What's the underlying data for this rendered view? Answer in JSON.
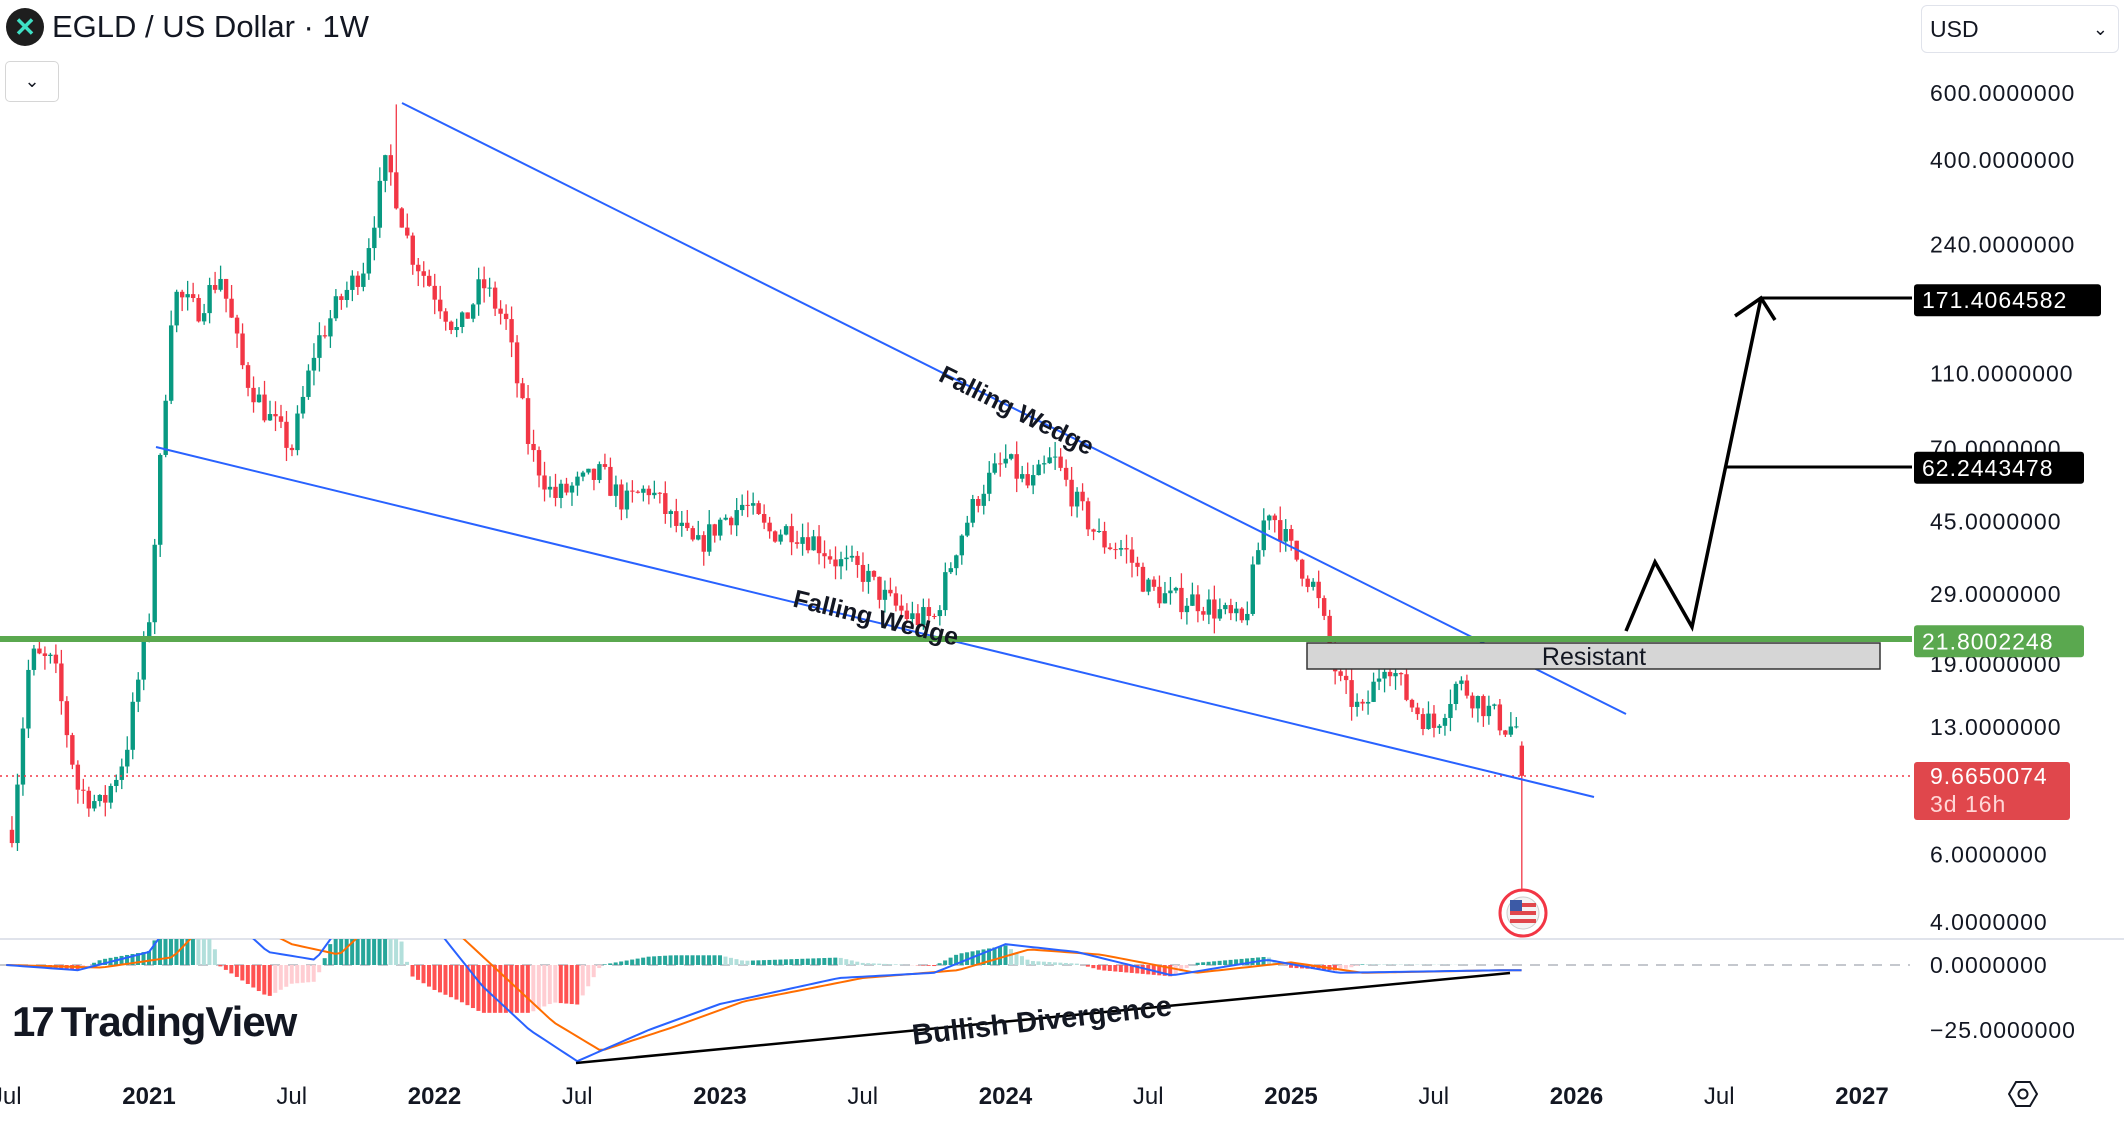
{
  "header": {
    "symbol_icon": "multiversx-x-logo",
    "title": "EGLD / US Dollar · 1W",
    "collapse_icon": "chevron-down-icon"
  },
  "currency_select": {
    "value": "USD",
    "icon": "chevron-down-icon"
  },
  "branding": {
    "logo_text": "TradingView"
  },
  "colors": {
    "up": "#089981",
    "down": "#f23645",
    "trendline": "#2962ff",
    "support_line": "#5aa84f",
    "price_label": "#e0474c",
    "macd": "#2962ff",
    "signal": "#ff6d00"
  },
  "chart_data": {
    "type": "candlestick",
    "interval": "1W",
    "y_scale": "log",
    "y_ticks": [
      "600.0000000",
      "400.0000000",
      "240.0000000",
      "110.0000000",
      "70.0000000",
      "45.0000000",
      "29.0000000",
      "19.0000000",
      "13.0000000",
      "6.0000000",
      "4.0000000"
    ],
    "y_tick_values": [
      600,
      400,
      240,
      110,
      70,
      45,
      29,
      19,
      13,
      6,
      4
    ],
    "x_ticks": [
      "Jul",
      "2021",
      "Jul",
      "2022",
      "Jul",
      "2023",
      "Jul",
      "2024",
      "Jul",
      "2025",
      "Jul",
      "2026",
      "Jul",
      "2027"
    ],
    "x_tick_dates": [
      "2020-07",
      "2021-01",
      "2021-07",
      "2022-01",
      "2022-07",
      "2023-01",
      "2023-07",
      "2024-01",
      "2024-07",
      "2025-01",
      "2025-07",
      "2026-01",
      "2026-07",
      "2027-01"
    ],
    "approx_close_path": [
      [
        "2020-07",
        5
      ],
      [
        "2020-08",
        20
      ],
      [
        "2020-09",
        19
      ],
      [
        "2020-10",
        9
      ],
      [
        "2020-11",
        8
      ],
      [
        "2020-12",
        11
      ],
      [
        "2021-01",
        25
      ],
      [
        "2021-02",
        180
      ],
      [
        "2021-03",
        160
      ],
      [
        "2021-04",
        200
      ],
      [
        "2021-05",
        110
      ],
      [
        "2021-06",
        85
      ],
      [
        "2021-07",
        70
      ],
      [
        "2021-08",
        130
      ],
      [
        "2021-09",
        170
      ],
      [
        "2021-10",
        210
      ],
      [
        "2021-11",
        400
      ],
      [
        "2021-12",
        230
      ],
      [
        "2022-01",
        180
      ],
      [
        "2022-02",
        140
      ],
      [
        "2022-03",
        190
      ],
      [
        "2022-04",
        150
      ],
      [
        "2022-05",
        70
      ],
      [
        "2022-06",
        52
      ],
      [
        "2022-07",
        56
      ],
      [
        "2022-08",
        60
      ],
      [
        "2022-09",
        50
      ],
      [
        "2022-10",
        55
      ],
      [
        "2022-11",
        45
      ],
      [
        "2022-12",
        38
      ],
      [
        "2023-01",
        45
      ],
      [
        "2023-02",
        50
      ],
      [
        "2023-03",
        42
      ],
      [
        "2023-04",
        43
      ],
      [
        "2023-05",
        40
      ],
      [
        "2023-06",
        35
      ],
      [
        "2023-07",
        33
      ],
      [
        "2023-08",
        28
      ],
      [
        "2023-09",
        25
      ],
      [
        "2023-10",
        25
      ],
      [
        "2023-11",
        40
      ],
      [
        "2023-12",
        55
      ],
      [
        "2024-01",
        65
      ],
      [
        "2024-02",
        55
      ],
      [
        "2024-03",
        66
      ],
      [
        "2024-04",
        50
      ],
      [
        "2024-05",
        40
      ],
      [
        "2024-06",
        38
      ],
      [
        "2024-07",
        30
      ],
      [
        "2024-08",
        28
      ],
      [
        "2024-09",
        28
      ],
      [
        "2024-10",
        26
      ],
      [
        "2024-11",
        24
      ],
      [
        "2024-12",
        50
      ],
      [
        "2025-01",
        38
      ],
      [
        "2025-02",
        30
      ],
      [
        "2025-03",
        17
      ],
      [
        "2025-04",
        14
      ],
      [
        "2025-05",
        20
      ],
      [
        "2025-06",
        15
      ],
      [
        "2025-07",
        13
      ],
      [
        "2025-08",
        17
      ],
      [
        "2025-09",
        15
      ],
      [
        "2025-10",
        13
      ]
    ],
    "last_price": "9.6650074",
    "countdown": "3d 16h",
    "price_lines": [
      {
        "value": "171.4064582",
        "style": "black"
      },
      {
        "value": "62.2443478",
        "style": "black"
      },
      {
        "value": "21.8002248",
        "style": "green"
      }
    ],
    "annotations": {
      "upper_wedge_label": "Falling Wedge",
      "lower_wedge_label": "Falling Wedge",
      "resistance_label": "Resistant",
      "divergence_label": "Bullish Divergence",
      "event_icon": "us-flag-icon"
    },
    "macd_pane": {
      "y_ticks": [
        "0.0000000",
        "−25.0000000"
      ],
      "y_tick_values": [
        0,
        -25
      ],
      "macd": [
        [
          "2020-07",
          0
        ],
        [
          "2020-10",
          -2
        ],
        [
          "2021-01",
          5
        ],
        [
          "2021-03",
          30
        ],
        [
          "2021-06",
          5
        ],
        [
          "2021-08",
          2
        ],
        [
          "2021-11",
          40
        ],
        [
          "2022-01",
          15
        ],
        [
          "2022-03",
          -8
        ],
        [
          "2022-05",
          -25
        ],
        [
          "2022-07",
          -37
        ],
        [
          "2022-10",
          -25
        ],
        [
          "2023-01",
          -15
        ],
        [
          "2023-06",
          -5
        ],
        [
          "2023-10",
          -3
        ],
        [
          "2024-01",
          8
        ],
        [
          "2024-04",
          5
        ],
        [
          "2024-08",
          -4
        ],
        [
          "2024-12",
          2
        ],
        [
          "2025-03",
          -3
        ],
        [
          "2025-10",
          -2
        ]
      ],
      "signal": [
        [
          "2020-07",
          0
        ],
        [
          "2020-11",
          -1
        ],
        [
          "2021-02",
          3
        ],
        [
          "2021-04",
          22
        ],
        [
          "2021-07",
          8
        ],
        [
          "2021-09",
          4
        ],
        [
          "2021-12",
          30
        ],
        [
          "2022-02",
          12
        ],
        [
          "2022-04",
          -5
        ],
        [
          "2022-06",
          -22
        ],
        [
          "2022-08",
          -33
        ],
        [
          "2022-11",
          -24
        ],
        [
          "2023-02",
          -14
        ],
        [
          "2023-07",
          -5
        ],
        [
          "2023-11",
          -2
        ],
        [
          "2024-02",
          6
        ],
        [
          "2024-05",
          4
        ],
        [
          "2024-09",
          -3
        ],
        [
          "2025-01",
          1
        ],
        [
          "2025-04",
          -3
        ],
        [
          "2025-10",
          -2
        ]
      ]
    }
  }
}
